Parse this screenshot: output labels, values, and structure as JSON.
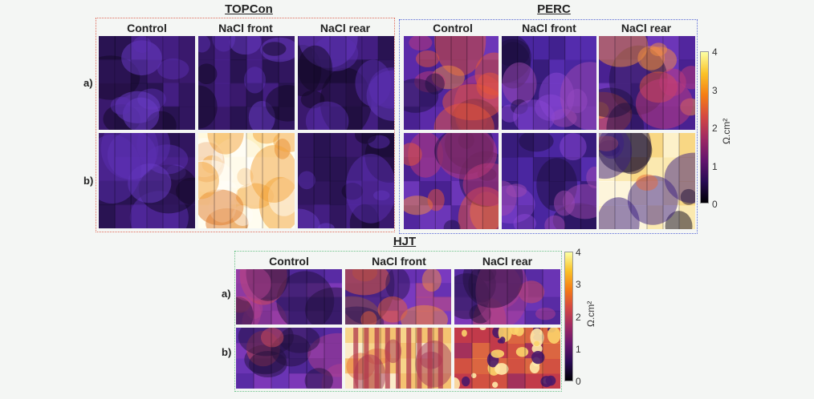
{
  "colors": {
    "topcon_frame": "#e06a5a",
    "perc_frame": "#5a6ad6",
    "hjt_frame": "#6ec28a"
  },
  "topcon": {
    "title": "TOPCon",
    "columns": [
      "Control",
      "NaCl front",
      "NaCl rear"
    ],
    "rows": [
      "a)",
      "b)"
    ]
  },
  "perc": {
    "title": "PERC",
    "columns": [
      "Control",
      "NaCl front",
      "NaCl rear"
    ],
    "rows": [
      "a)",
      "b)"
    ]
  },
  "hjt": {
    "title": "HJT",
    "columns": [
      "Control",
      "NaCl front",
      "NaCl rear"
    ],
    "rows": [
      "a)",
      "b)"
    ]
  },
  "colorbar": {
    "unit": "Ω.cm²",
    "ticks": [
      "4",
      "3",
      "2",
      "1",
      "0"
    ],
    "scale": "inferno"
  }
}
